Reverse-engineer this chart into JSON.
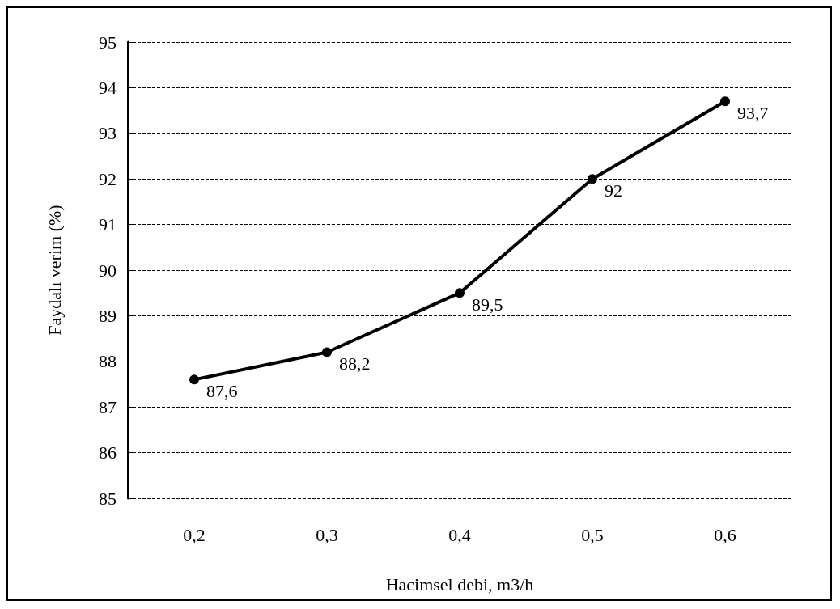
{
  "chart_data": {
    "type": "line",
    "xlabel": "Hacimsel debi, m3/h",
    "ylabel": "Faydalı verim (%)",
    "categories": [
      "0,2",
      "0,3",
      "0,4",
      "0,5",
      "0,6"
    ],
    "values": [
      87.6,
      88.2,
      89.5,
      92,
      93.7
    ],
    "value_labels": [
      "87,6",
      "88,2",
      "89,5",
      "92",
      "93,7"
    ],
    "color": "#000000",
    "ylim": [
      85,
      95
    ],
    "yticks": [
      85,
      86,
      87,
      88,
      89,
      90,
      91,
      92,
      93,
      94,
      95
    ],
    "grid": "y",
    "marker": "circle",
    "line_style": "solid"
  }
}
